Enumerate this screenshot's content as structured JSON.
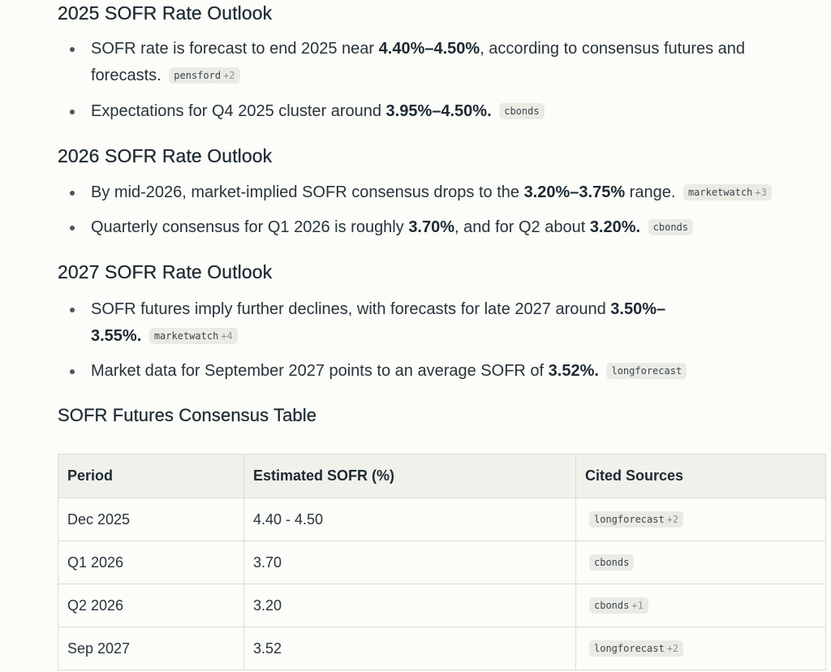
{
  "sections": [
    {
      "heading": "2025 SOFR Rate Outlook",
      "bullets": [
        {
          "pre": "SOFR rate is forecast to end 2025 near ",
          "bold": "4.40%–4.50%",
          "post": ", according to consensus futures and forecasts.",
          "cite": {
            "source": "pensford",
            "more": "+2"
          }
        },
        {
          "pre": "Expectations for Q4 2025 cluster around ",
          "bold": "3.95%–4.50%.",
          "post": "",
          "cite": {
            "source": "cbonds",
            "more": ""
          }
        }
      ]
    },
    {
      "heading": "2026 SOFR Rate Outlook",
      "bullets": [
        {
          "pre": "By mid-2026, market-implied SOFR consensus drops to the ",
          "bold": "3.20%–3.75%",
          "post": " range.",
          "cite": {
            "source": "marketwatch",
            "more": "+3"
          }
        },
        {
          "pre": "Quarterly consensus for Q1 2026 is roughly ",
          "bold": "3.70%",
          "mid": ", and for Q2 about ",
          "bold2": "3.20%.",
          "cite": {
            "source": "cbonds",
            "more": ""
          }
        }
      ]
    },
    {
      "heading": "2027 SOFR Rate Outlook",
      "bullets": [
        {
          "pre": "SOFR futures imply further declines, with forecasts for late 2027 around ",
          "bold": "3.50%–",
          "bold_line2": "3.55%.",
          "cite": {
            "source": "marketwatch",
            "more": "+4"
          }
        },
        {
          "pre": "Market data for September 2027 points to an average SOFR of ",
          "bold": "3.52%.",
          "post": "",
          "cite": {
            "source": "longforecast",
            "more": ""
          }
        }
      ]
    }
  ],
  "table": {
    "title": "SOFR Futures Consensus Table",
    "headers": [
      "Period",
      "Estimated SOFR (%)",
      "Cited Sources"
    ],
    "rows": [
      {
        "period": "Dec 2025",
        "estimate": "4.40 - 4.50",
        "source": "longforecast",
        "more": "+2"
      },
      {
        "period": "Q1 2026",
        "estimate": "3.70",
        "source": "cbonds",
        "more": ""
      },
      {
        "period": "Q2 2026",
        "estimate": "3.20",
        "source": "cbonds",
        "more": "+1"
      },
      {
        "period": "Sep 2027",
        "estimate": "3.52",
        "source": "longforecast",
        "more": "+2"
      }
    ]
  }
}
